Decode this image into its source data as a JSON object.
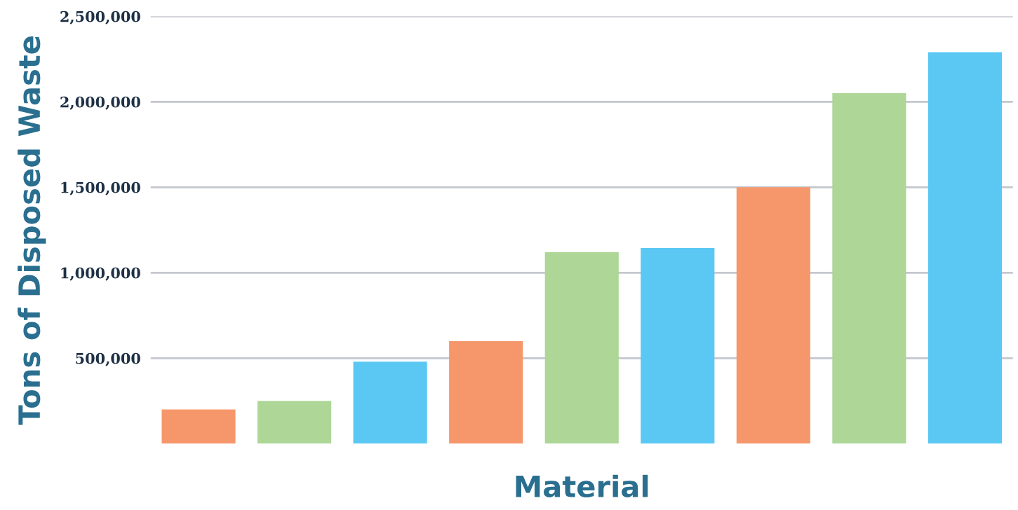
{
  "chart_data": {
    "type": "bar",
    "xlabel": "Material",
    "ylabel": "Tons of Disposed Waste",
    "categories": [
      null,
      null,
      null,
      null,
      null,
      null,
      null,
      null,
      null
    ],
    "values": [
      200000,
      250000,
      480000,
      600000,
      1120000,
      1145000,
      1500000,
      2050000,
      2290000
    ],
    "colors": [
      "#f6976b",
      "#add697",
      "#5bc8f3",
      "#f6976b",
      "#add697",
      "#5bc8f3",
      "#f6976b",
      "#add697",
      "#5bc8f3"
    ],
    "ylim": [
      0,
      2500000
    ],
    "yticks": [
      {
        "value": 500000,
        "label": "500,000"
      },
      {
        "value": 1000000,
        "label": "1,000,000"
      },
      {
        "value": 1500000,
        "label": "1,500,000"
      },
      {
        "value": 2000000,
        "label": "2,000,000"
      },
      {
        "value": 2500000,
        "label": "2,500,000"
      }
    ],
    "grid": "y",
    "legend": false
  }
}
